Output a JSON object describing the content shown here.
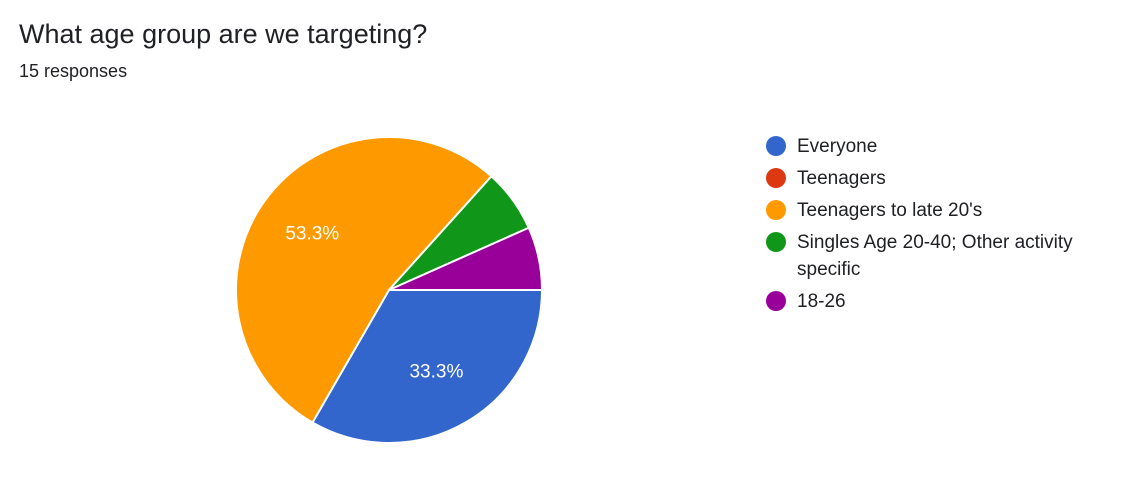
{
  "question": {
    "title": "What age group are we targeting?",
    "responses": "15 responses"
  },
  "chart_data": {
    "type": "pie",
    "categories": [
      "Everyone",
      "Teenagers",
      "Teenagers to late 20's",
      "Singles Age 20-40; Other activity specific",
      "18-26"
    ],
    "counts": [
      5,
      0,
      8,
      1,
      1
    ],
    "values": [
      33.3,
      0,
      53.3,
      6.7,
      6.7
    ],
    "value_labels": [
      "33.3%",
      "",
      "53.3%",
      "",
      ""
    ],
    "colors": [
      "#3366cc",
      "#dc3912",
      "#ff9900",
      "#109618",
      "#990099"
    ],
    "total": 15,
    "legend_position": "right"
  }
}
